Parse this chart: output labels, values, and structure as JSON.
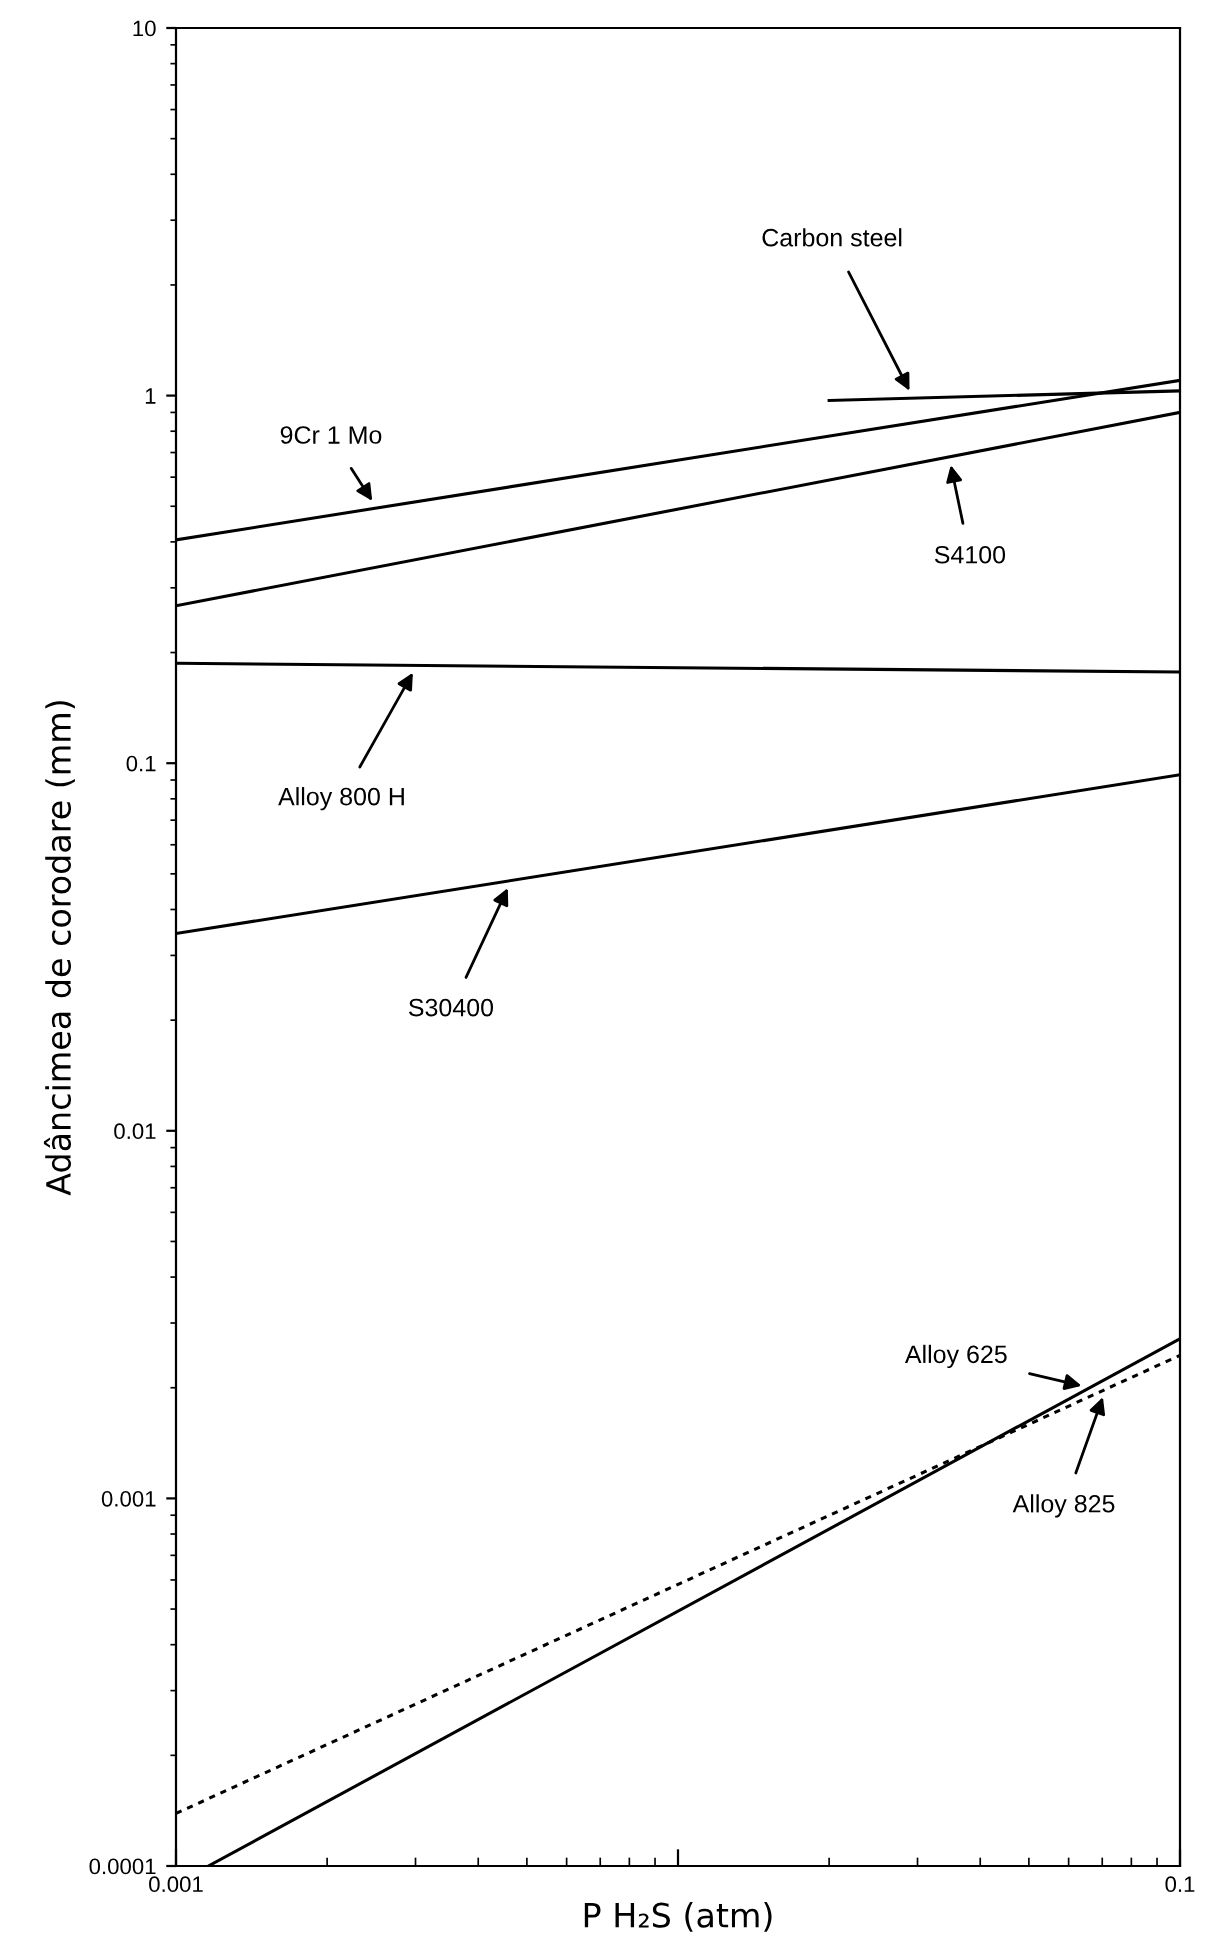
{
  "chart_data": {
    "type": "line",
    "xlabel": "P H₂S (atm)",
    "ylabel": "Adâncimea de corodare (mm)",
    "log": "xy",
    "xlim": [
      0.001,
      0.1
    ],
    "ylim": [
      0.0001,
      10
    ],
    "xticks": [
      0.001,
      {
        "value": 0.01,
        "label": null
      },
      0.1
    ],
    "yticks": [
      0.0001,
      0.001,
      0.01,
      0.1,
      1,
      10
    ],
    "grid": false,
    "marker": "none",
    "series": [
      {
        "name": "Carbon steel",
        "color": "#000000",
        "x": [
          0.02,
          0.1
        ],
        "values": [
          0.97,
          1.03
        ],
        "line_style": "solid"
      },
      {
        "name": "9Cr 1 Mo",
        "color": "#000000",
        "x": [
          0.001,
          0.1
        ],
        "values": [
          0.405,
          1.1
        ],
        "line_style": "solid"
      },
      {
        "name": "S4100",
        "color": "#000000",
        "x": [
          0.001,
          0.1
        ],
        "values": [
          0.268,
          0.9
        ],
        "line_style": "solid"
      },
      {
        "name": "Alloy 800 H",
        "color": "#000000",
        "x": [
          0.001,
          0.1
        ],
        "values": [
          0.187,
          0.177
        ],
        "line_style": "solid"
      },
      {
        "name": "S30400",
        "color": "#000000",
        "x": [
          0.001,
          0.1
        ],
        "values": [
          0.0344,
          0.093
        ],
        "line_style": "solid"
      },
      {
        "name": "Alloy 625",
        "color": "#000000",
        "x": [
          0.00116,
          0.1
        ],
        "values": [
          0.0001,
          0.00272
        ],
        "line_style": "solid"
      },
      {
        "name": "Alloy 825",
        "color": "#000000",
        "x": [
          0.001,
          0.1
        ],
        "values": [
          0.000139,
          0.00245
        ],
        "line_style": "dotted"
      }
    ]
  }
}
